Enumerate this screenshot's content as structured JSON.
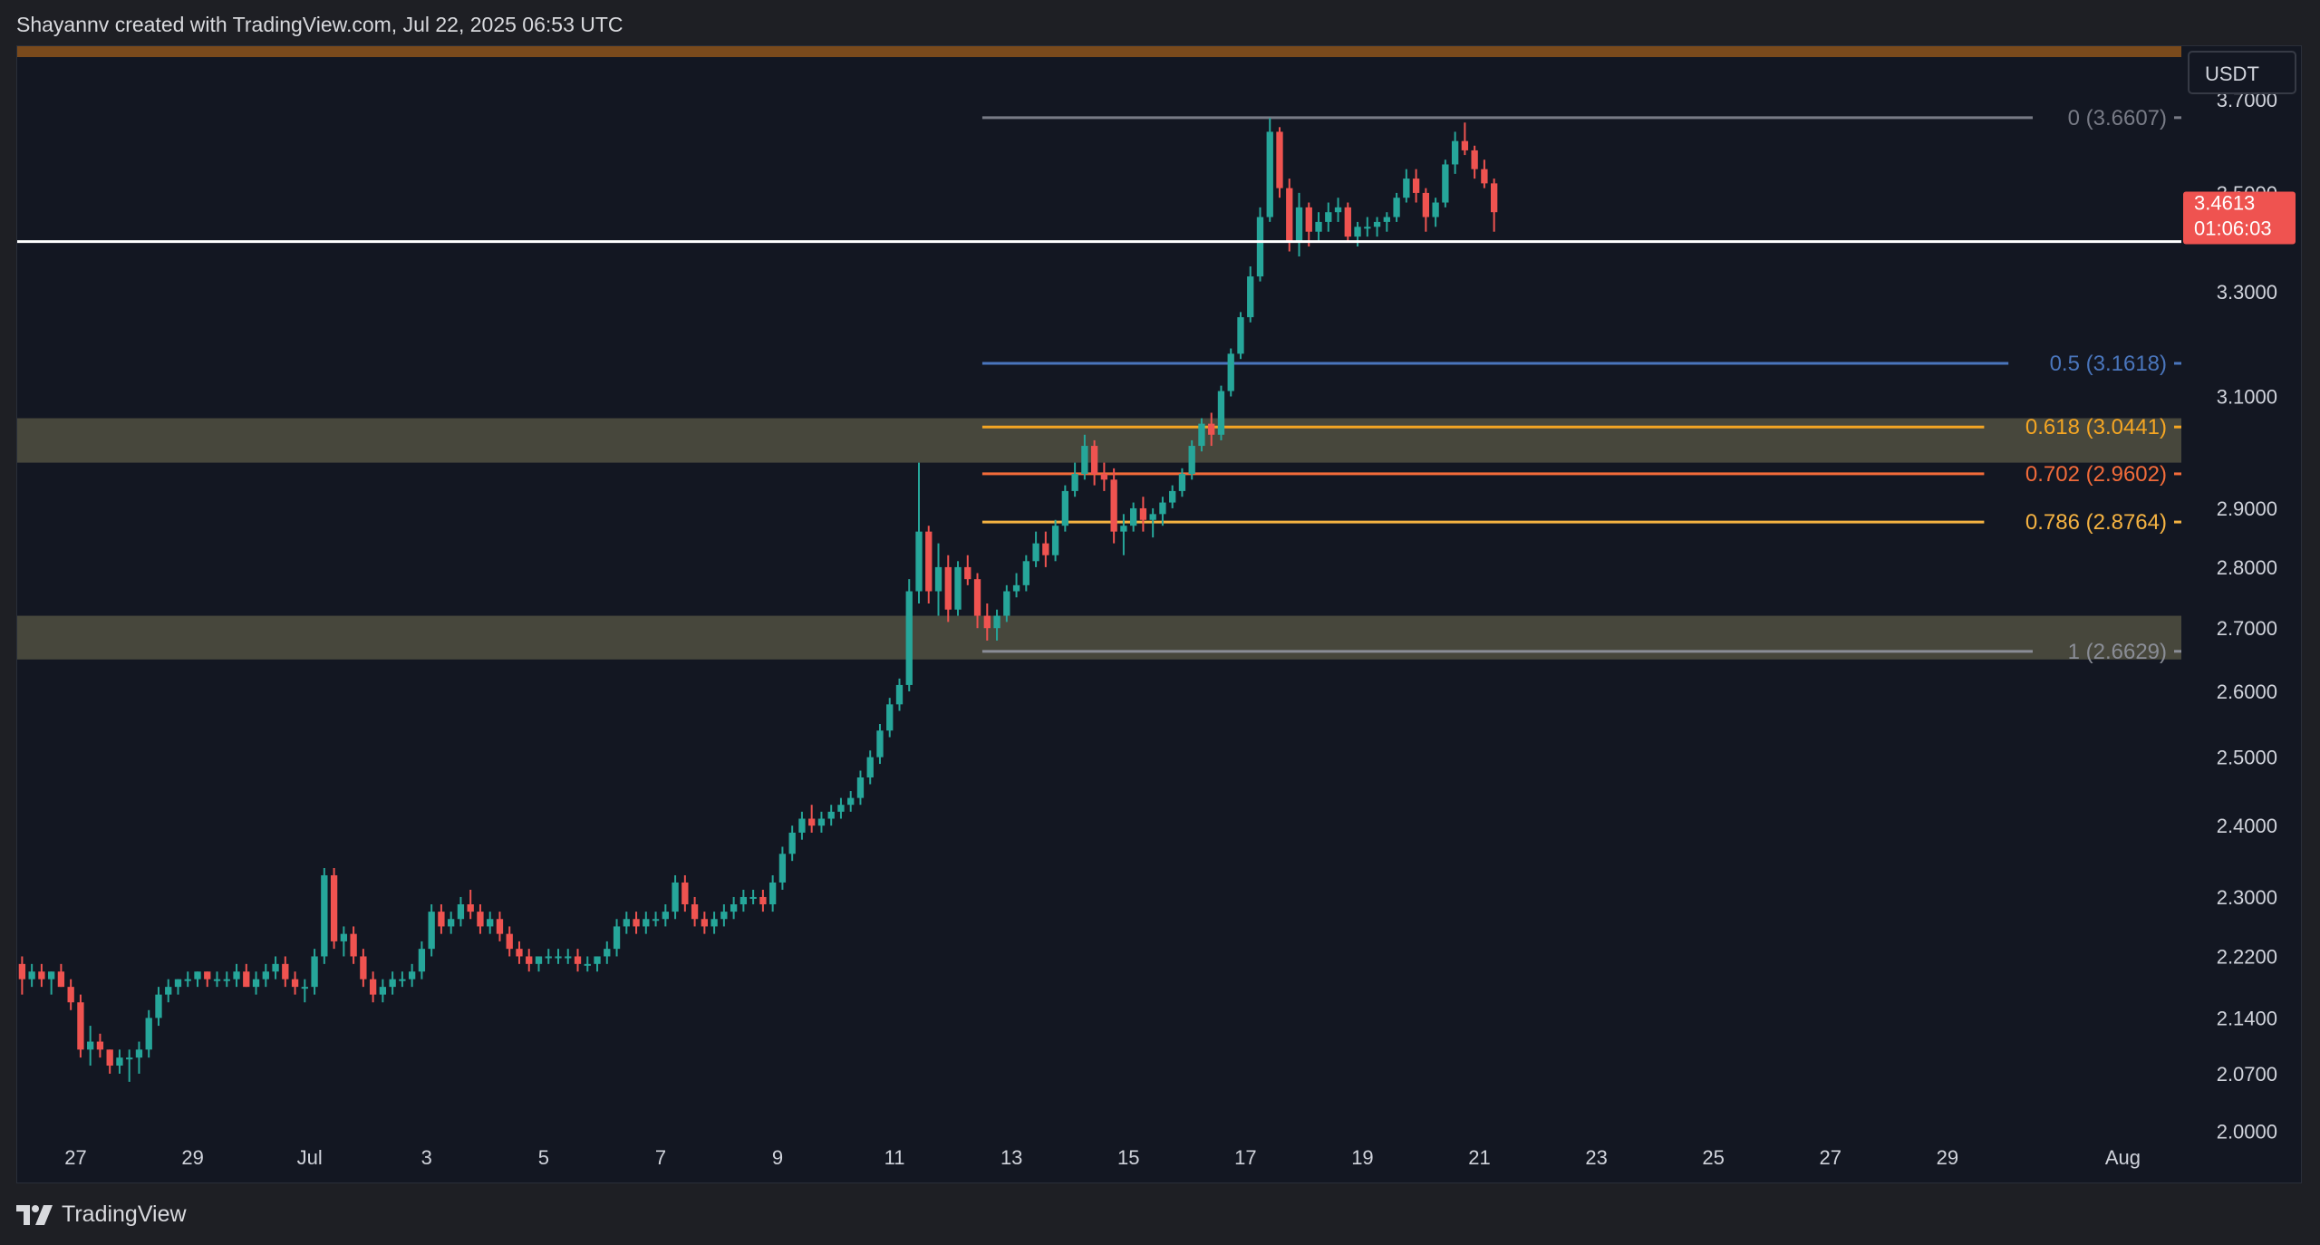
{
  "header": {
    "caption": "Shayannv created with TradingView.com, Jul 22, 2025 06:53 UTC"
  },
  "footer": {
    "logo_text": "TradingView"
  },
  "colors": {
    "background": "#131722",
    "up": "#26a69a",
    "down": "#ef5350",
    "zone": "#4a4a3e",
    "top_band": "#7a4a1c",
    "support_line": "#ffffff"
  },
  "chart_data": {
    "type": "candlestick",
    "unit": "USDT",
    "y_axis": {
      "scale": "log",
      "range": [
        1.94,
        3.82
      ],
      "ticks": [
        "3.7000",
        "3.5000",
        "3.3000",
        "3.1000",
        "2.9000",
        "2.8000",
        "2.7000",
        "2.6000",
        "2.5000",
        "2.4000",
        "2.3000",
        "2.2200",
        "2.1400",
        "2.0700",
        "2.0000"
      ]
    },
    "x_axis": {
      "range": [
        "2025-06-26",
        "2025-08-02"
      ],
      "ticks": [
        {
          "label": "27",
          "date": "2025-06-27"
        },
        {
          "label": "29",
          "date": "2025-06-29"
        },
        {
          "label": "Jul",
          "date": "2025-07-01"
        },
        {
          "label": "3",
          "date": "2025-07-03"
        },
        {
          "label": "5",
          "date": "2025-07-05"
        },
        {
          "label": "7",
          "date": "2025-07-07"
        },
        {
          "label": "9",
          "date": "2025-07-09"
        },
        {
          "label": "11",
          "date": "2025-07-11"
        },
        {
          "label": "13",
          "date": "2025-07-13"
        },
        {
          "label": "15",
          "date": "2025-07-15"
        },
        {
          "label": "17",
          "date": "2025-07-17"
        },
        {
          "label": "19",
          "date": "2025-07-19"
        },
        {
          "label": "21",
          "date": "2025-07-21"
        },
        {
          "label": "23",
          "date": "2025-07-23"
        },
        {
          "label": "25",
          "date": "2025-07-25"
        },
        {
          "label": "27",
          "date": "2025-07-27"
        },
        {
          "label": "29",
          "date": "2025-07-29"
        },
        {
          "label": "Aug",
          "date": "2025-08-01"
        }
      ]
    },
    "current_price": {
      "value": "3.4613",
      "countdown": "01:06:03"
    },
    "support_line": {
      "price": 3.4
    },
    "zones": [
      {
        "from": 2.98,
        "to": 3.06
      },
      {
        "from": 2.65,
        "to": 2.72
      }
    ],
    "fib_levels": [
      {
        "label": "0 (3.6607)",
        "price": 3.6607,
        "color": "#787b86"
      },
      {
        "label": "0.5 (3.1618)",
        "price": 3.1618,
        "color": "#4a76bd"
      },
      {
        "label": "0.618 (3.0441)",
        "price": 3.0441,
        "color": "#f5a623"
      },
      {
        "label": "0.702 (2.9602)",
        "price": 2.9602,
        "color": "#f26b3a"
      },
      {
        "label": "0.786 (2.8764)",
        "price": 2.8764,
        "color": "#f5b342"
      },
      {
        "label": "1 (2.6629)",
        "price": 2.6629,
        "color": "#8a8d96"
      }
    ],
    "fib_start_date": "2025-07-12T12:00",
    "candle_start": "2025-06-26T00:00",
    "candle_step_hours": 4,
    "candles": [
      [
        2.21,
        2.22,
        2.17,
        2.19
      ],
      [
        2.19,
        2.21,
        2.18,
        2.2
      ],
      [
        2.2,
        2.21,
        2.18,
        2.19
      ],
      [
        2.19,
        2.2,
        2.17,
        2.2
      ],
      [
        2.2,
        2.21,
        2.18,
        2.18
      ],
      [
        2.18,
        2.19,
        2.15,
        2.16
      ],
      [
        2.16,
        2.17,
        2.09,
        2.1
      ],
      [
        2.1,
        2.13,
        2.08,
        2.11
      ],
      [
        2.11,
        2.12,
        2.09,
        2.1
      ],
      [
        2.1,
        2.1,
        2.07,
        2.08
      ],
      [
        2.08,
        2.1,
        2.07,
        2.09
      ],
      [
        2.09,
        2.1,
        2.06,
        2.09
      ],
      [
        2.09,
        2.11,
        2.07,
        2.1
      ],
      [
        2.1,
        2.15,
        2.09,
        2.14
      ],
      [
        2.14,
        2.18,
        2.13,
        2.17
      ],
      [
        2.17,
        2.19,
        2.16,
        2.18
      ],
      [
        2.18,
        2.19,
        2.17,
        2.19
      ],
      [
        2.19,
        2.2,
        2.18,
        2.19
      ],
      [
        2.19,
        2.2,
        2.18,
        2.2
      ],
      [
        2.2,
        2.2,
        2.18,
        2.19
      ],
      [
        2.19,
        2.2,
        2.18,
        2.19
      ],
      [
        2.19,
        2.2,
        2.18,
        2.19
      ],
      [
        2.19,
        2.21,
        2.18,
        2.2
      ],
      [
        2.2,
        2.21,
        2.18,
        2.18
      ],
      [
        2.18,
        2.2,
        2.17,
        2.19
      ],
      [
        2.19,
        2.21,
        2.18,
        2.2
      ],
      [
        2.2,
        2.22,
        2.19,
        2.21
      ],
      [
        2.21,
        2.22,
        2.18,
        2.19
      ],
      [
        2.19,
        2.2,
        2.17,
        2.18
      ],
      [
        2.18,
        2.19,
        2.16,
        2.18
      ],
      [
        2.18,
        2.23,
        2.17,
        2.22
      ],
      [
        2.22,
        2.34,
        2.21,
        2.33
      ],
      [
        2.33,
        2.34,
        2.23,
        2.24
      ],
      [
        2.24,
        2.26,
        2.22,
        2.25
      ],
      [
        2.25,
        2.26,
        2.21,
        2.22
      ],
      [
        2.22,
        2.23,
        2.18,
        2.19
      ],
      [
        2.19,
        2.2,
        2.16,
        2.17
      ],
      [
        2.17,
        2.19,
        2.16,
        2.18
      ],
      [
        2.18,
        2.2,
        2.17,
        2.19
      ],
      [
        2.19,
        2.2,
        2.18,
        2.19
      ],
      [
        2.19,
        2.21,
        2.18,
        2.2
      ],
      [
        2.2,
        2.24,
        2.19,
        2.23
      ],
      [
        2.23,
        2.29,
        2.22,
        2.28
      ],
      [
        2.28,
        2.29,
        2.25,
        2.26
      ],
      [
        2.26,
        2.28,
        2.25,
        2.27
      ],
      [
        2.27,
        2.3,
        2.26,
        2.29
      ],
      [
        2.29,
        2.31,
        2.27,
        2.28
      ],
      [
        2.28,
        2.29,
        2.25,
        2.26
      ],
      [
        2.26,
        2.28,
        2.25,
        2.27
      ],
      [
        2.27,
        2.28,
        2.24,
        2.25
      ],
      [
        2.25,
        2.26,
        2.22,
        2.23
      ],
      [
        2.23,
        2.24,
        2.21,
        2.22
      ],
      [
        2.22,
        2.23,
        2.2,
        2.21
      ],
      [
        2.21,
        2.22,
        2.2,
        2.22
      ],
      [
        2.22,
        2.23,
        2.21,
        2.22
      ],
      [
        2.22,
        2.23,
        2.21,
        2.22
      ],
      [
        2.22,
        2.23,
        2.21,
        2.22
      ],
      [
        2.22,
        2.23,
        2.2,
        2.21
      ],
      [
        2.21,
        2.22,
        2.2,
        2.21
      ],
      [
        2.21,
        2.22,
        2.2,
        2.22
      ],
      [
        2.22,
        2.24,
        2.21,
        2.23
      ],
      [
        2.23,
        2.27,
        2.22,
        2.26
      ],
      [
        2.26,
        2.28,
        2.25,
        2.27
      ],
      [
        2.27,
        2.28,
        2.25,
        2.26
      ],
      [
        2.26,
        2.28,
        2.25,
        2.27
      ],
      [
        2.27,
        2.28,
        2.26,
        2.27
      ],
      [
        2.27,
        2.29,
        2.26,
        2.28
      ],
      [
        2.28,
        2.33,
        2.27,
        2.32
      ],
      [
        2.32,
        2.33,
        2.28,
        2.29
      ],
      [
        2.29,
        2.3,
        2.26,
        2.27
      ],
      [
        2.27,
        2.28,
        2.25,
        2.26
      ],
      [
        2.26,
        2.28,
        2.25,
        2.27
      ],
      [
        2.27,
        2.29,
        2.26,
        2.28
      ],
      [
        2.28,
        2.3,
        2.27,
        2.29
      ],
      [
        2.29,
        2.31,
        2.28,
        2.3
      ],
      [
        2.3,
        2.31,
        2.29,
        2.3
      ],
      [
        2.3,
        2.31,
        2.28,
        2.29
      ],
      [
        2.29,
        2.33,
        2.28,
        2.32
      ],
      [
        2.32,
        2.37,
        2.31,
        2.36
      ],
      [
        2.36,
        2.4,
        2.35,
        2.39
      ],
      [
        2.39,
        2.42,
        2.38,
        2.41
      ],
      [
        2.41,
        2.43,
        2.39,
        2.4
      ],
      [
        2.4,
        2.42,
        2.39,
        2.41
      ],
      [
        2.41,
        2.43,
        2.4,
        2.42
      ],
      [
        2.42,
        2.44,
        2.41,
        2.43
      ],
      [
        2.43,
        2.45,
        2.42,
        2.44
      ],
      [
        2.44,
        2.48,
        2.43,
        2.47
      ],
      [
        2.47,
        2.51,
        2.46,
        2.5
      ],
      [
        2.5,
        2.55,
        2.49,
        2.54
      ],
      [
        2.54,
        2.59,
        2.53,
        2.58
      ],
      [
        2.58,
        2.62,
        2.57,
        2.61
      ],
      [
        2.61,
        2.78,
        2.6,
        2.76
      ],
      [
        2.76,
        2.98,
        2.74,
        2.86
      ],
      [
        2.86,
        2.87,
        2.74,
        2.76
      ],
      [
        2.76,
        2.84,
        2.72,
        2.8
      ],
      [
        2.8,
        2.82,
        2.71,
        2.73
      ],
      [
        2.73,
        2.81,
        2.72,
        2.8
      ],
      [
        2.8,
        2.82,
        2.77,
        2.78
      ],
      [
        2.78,
        2.79,
        2.7,
        2.72
      ],
      [
        2.72,
        2.74,
        2.68,
        2.7
      ],
      [
        2.7,
        2.73,
        2.68,
        2.72
      ],
      [
        2.72,
        2.77,
        2.71,
        2.76
      ],
      [
        2.76,
        2.79,
        2.75,
        2.77
      ],
      [
        2.77,
        2.82,
        2.76,
        2.81
      ],
      [
        2.81,
        2.86,
        2.8,
        2.84
      ],
      [
        2.84,
        2.86,
        2.8,
        2.82
      ],
      [
        2.82,
        2.88,
        2.81,
        2.87
      ],
      [
        2.87,
        2.94,
        2.86,
        2.93
      ],
      [
        2.93,
        2.98,
        2.92,
        2.96
      ],
      [
        2.96,
        3.03,
        2.95,
        3.01
      ],
      [
        3.01,
        3.02,
        2.94,
        2.96
      ],
      [
        2.96,
        2.98,
        2.93,
        2.95
      ],
      [
        2.95,
        2.97,
        2.84,
        2.86
      ],
      [
        2.86,
        2.89,
        2.82,
        2.87
      ],
      [
        2.87,
        2.91,
        2.86,
        2.9
      ],
      [
        2.9,
        2.92,
        2.86,
        2.88
      ],
      [
        2.88,
        2.9,
        2.85,
        2.89
      ],
      [
        2.89,
        2.92,
        2.87,
        2.91
      ],
      [
        2.91,
        2.94,
        2.9,
        2.93
      ],
      [
        2.93,
        2.97,
        2.92,
        2.96
      ],
      [
        2.96,
        3.02,
        2.95,
        3.01
      ],
      [
        3.01,
        3.06,
        3.0,
        3.05
      ],
      [
        3.05,
        3.07,
        3.01,
        3.03
      ],
      [
        3.03,
        3.12,
        3.02,
        3.11
      ],
      [
        3.11,
        3.19,
        3.1,
        3.18
      ],
      [
        3.18,
        3.26,
        3.17,
        3.25
      ],
      [
        3.25,
        3.35,
        3.24,
        3.33
      ],
      [
        3.33,
        3.47,
        3.32,
        3.45
      ],
      [
        3.45,
        3.66,
        3.44,
        3.63
      ],
      [
        3.63,
        3.64,
        3.49,
        3.51
      ],
      [
        3.51,
        3.53,
        3.38,
        3.4
      ],
      [
        3.4,
        3.5,
        3.37,
        3.47
      ],
      [
        3.47,
        3.48,
        3.39,
        3.42
      ],
      [
        3.42,
        3.46,
        3.4,
        3.44
      ],
      [
        3.44,
        3.48,
        3.42,
        3.46
      ],
      [
        3.46,
        3.49,
        3.44,
        3.47
      ],
      [
        3.47,
        3.48,
        3.4,
        3.41
      ],
      [
        3.41,
        3.44,
        3.39,
        3.43
      ],
      [
        3.43,
        3.45,
        3.41,
        3.43
      ],
      [
        3.43,
        3.45,
        3.41,
        3.44
      ],
      [
        3.44,
        3.46,
        3.42,
        3.45
      ],
      [
        3.45,
        3.5,
        3.44,
        3.49
      ],
      [
        3.49,
        3.55,
        3.48,
        3.53
      ],
      [
        3.53,
        3.55,
        3.48,
        3.5
      ],
      [
        3.5,
        3.51,
        3.42,
        3.45
      ],
      [
        3.45,
        3.49,
        3.43,
        3.48
      ],
      [
        3.48,
        3.57,
        3.47,
        3.56
      ],
      [
        3.56,
        3.63,
        3.54,
        3.61
      ],
      [
        3.61,
        3.65,
        3.58,
        3.59
      ],
      [
        3.59,
        3.6,
        3.53,
        3.55
      ],
      [
        3.55,
        3.57,
        3.51,
        3.52
      ],
      [
        3.52,
        3.53,
        3.42,
        3.46
      ]
    ]
  }
}
